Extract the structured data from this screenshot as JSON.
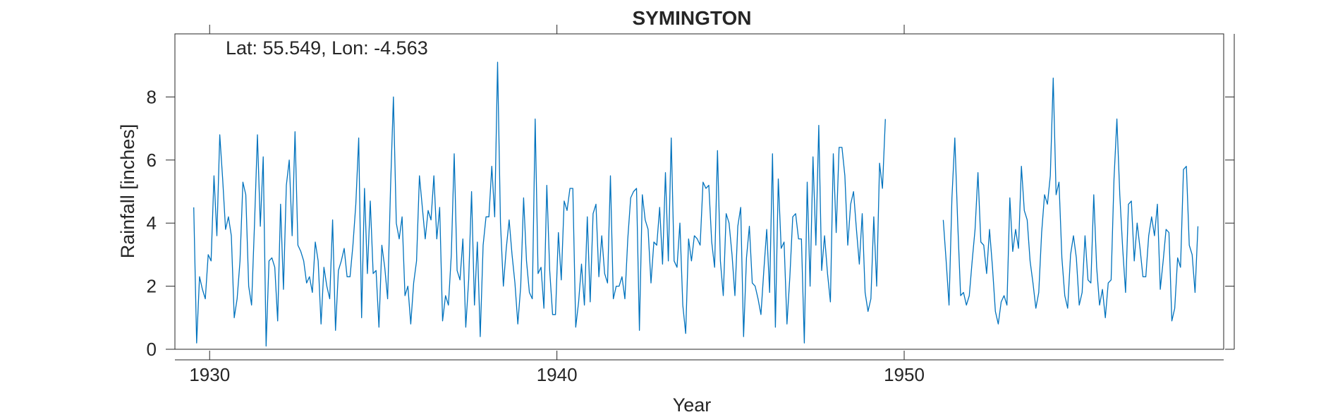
{
  "chart_data": {
    "type": "line",
    "title": "SYMINGTON",
    "xlabel": "Year",
    "ylabel": "Rainfall [inches]",
    "annotation": "Lat: 55.549, Lon: -4.563",
    "xlim": [
      1929,
      1959.2
    ],
    "ylim": [
      0,
      10
    ],
    "xticks": [
      1930,
      1940,
      1950
    ],
    "xtick_labels": [
      "1930",
      "1940",
      "1950"
    ],
    "yticks": [
      0,
      2,
      4,
      6,
      8
    ],
    "ytick_labels": [
      "0",
      "2",
      "4",
      "6",
      "8"
    ],
    "grid": false,
    "line_color": "#0072BD",
    "series": [
      {
        "start": 1929.542,
        "step": 0.08333,
        "values": [
          4.5,
          0.2,
          2.3,
          1.9,
          1.6,
          3.0,
          2.8,
          5.5,
          3.6,
          6.8,
          5.4,
          3.8,
          4.2,
          3.6,
          1.0,
          1.6,
          2.8,
          5.3,
          4.9,
          2.0,
          1.4,
          4.0,
          6.8,
          3.9,
          6.1,
          0.1,
          2.8,
          2.9,
          2.6,
          0.9,
          4.6,
          1.9,
          5.2,
          6.0,
          3.6,
          6.9,
          3.3,
          3.1,
          2.8,
          2.1,
          2.3,
          1.8,
          3.4,
          2.8,
          0.8,
          2.6,
          2.0,
          1.6,
          4.1,
          0.6,
          2.5,
          2.8,
          3.2,
          2.3,
          2.3,
          3.3,
          4.6,
          6.7,
          1.0,
          5.1,
          2.4,
          4.7,
          2.4,
          2.5,
          0.7,
          3.3,
          2.6,
          1.6,
          5.1,
          8.0,
          4.0,
          3.5,
          4.2,
          1.7,
          2.0,
          0.8,
          2.1,
          2.8,
          5.5,
          4.5,
          3.5,
          4.4,
          4.1,
          5.5,
          3.5,
          4.5,
          0.9,
          1.7,
          1.4,
          3.0,
          6.2,
          2.5,
          2.2,
          3.5,
          0.7,
          2.2,
          5.0,
          1.4,
          3.4,
          0.4,
          3.3,
          4.2,
          4.2,
          5.8,
          4.2,
          9.1,
          4.0,
          2.0,
          3.2,
          4.1,
          3.0,
          2.1,
          0.8,
          2.0,
          4.8,
          2.8,
          1.8,
          1.6,
          7.3,
          2.4,
          2.6,
          1.3,
          5.2,
          2.5,
          1.1,
          1.1,
          3.7,
          2.2,
          4.7,
          4.4,
          5.1,
          5.1,
          0.7,
          1.5,
          2.7,
          1.4,
          4.2,
          1.5,
          4.3,
          4.6,
          2.3,
          3.6,
          2.4,
          2.1,
          5.5,
          1.6,
          2.0,
          2.0,
          2.3,
          1.6,
          3.5,
          4.8,
          5.0,
          5.1,
          0.6,
          4.9,
          4.1,
          3.8,
          2.1,
          3.4,
          3.3,
          4.5,
          2.7,
          5.6,
          2.8,
          6.7,
          2.8,
          2.6,
          4.0,
          1.4,
          0.5,
          3.5,
          2.8,
          3.6,
          3.5,
          3.3,
          5.3,
          5.1,
          5.2,
          3.4,
          2.6,
          6.3,
          2.8,
          1.7,
          4.3,
          4.0,
          3.0,
          1.7,
          3.9,
          4.5,
          0.4,
          2.9,
          3.9,
          2.1,
          2.0,
          1.6,
          1.1,
          2.5,
          3.8,
          1.8,
          6.2,
          0.7,
          5.4,
          3.2,
          3.4,
          0.8,
          2.3,
          4.2,
          4.3,
          3.5,
          3.5,
          0.2,
          5.3,
          2.0,
          6.1,
          3.3,
          7.1,
          2.5,
          3.6,
          2.4,
          1.5,
          6.2,
          3.7,
          6.4,
          6.4,
          5.5,
          3.3,
          4.6,
          5.0,
          3.8,
          2.7,
          4.3,
          1.8,
          1.2,
          1.6,
          4.2,
          2.0,
          5.9,
          5.1,
          7.3
        ]
      },
      {
        "start": 1951.125,
        "step": 0.08333,
        "values": [
          4.1,
          2.8,
          1.4,
          4.8,
          6.7,
          4.0,
          1.7,
          1.8,
          1.4,
          1.7,
          2.8,
          3.8,
          5.6,
          3.4,
          3.3,
          2.4,
          3.8,
          2.6,
          1.2,
          0.8,
          1.5,
          1.7,
          1.4,
          4.8,
          3.1,
          3.8,
          3.2,
          5.8,
          4.4,
          4.1,
          2.8,
          2.1,
          1.3,
          1.8,
          3.7,
          4.9,
          4.6,
          5.5,
          8.6,
          4.9,
          5.3,
          2.9,
          1.7,
          1.3,
          3.0,
          3.6,
          2.9,
          1.4,
          1.8,
          3.6,
          2.2,
          2.1,
          4.9,
          2.6,
          1.4,
          1.9,
          1.0,
          2.1,
          2.2,
          5.4,
          7.3,
          4.9,
          3.2,
          1.8,
          4.6,
          4.7,
          2.8,
          4.0,
          3.2,
          2.3,
          2.3,
          3.6,
          4.2,
          3.6,
          4.6,
          1.9,
          2.8,
          3.8,
          3.7,
          0.9,
          1.3,
          2.9,
          2.6,
          5.7,
          5.8,
          3.3,
          3.0,
          1.8,
          3.9
        ]
      }
    ]
  }
}
